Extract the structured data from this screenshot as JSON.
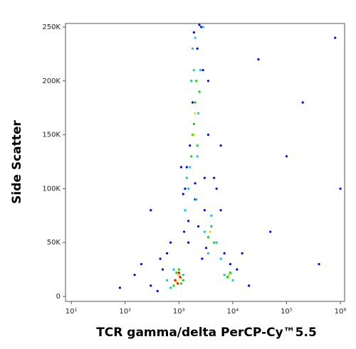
{
  "chart_data": {
    "type": "scatter",
    "x_label": "TCR gamma/delta PerCP-Cy™5.5",
    "y_label": "Side Scatter",
    "xscale": "log",
    "xlim": [
      7.8,
      1200000
    ],
    "xticks": [
      {
        "value": 10,
        "label": "10¹"
      },
      {
        "value": 100,
        "label": "10²"
      },
      {
        "value": 1000,
        "label": "10³"
      },
      {
        "value": 10000,
        "label": "10⁴"
      },
      {
        "value": 100000,
        "label": "10⁵"
      },
      {
        "value": 1000000,
        "label": "10⁶"
      }
    ],
    "ylim": [
      -4600,
      253300
    ],
    "yticks": [
      0,
      {
        "value": 50000,
        "label": "50K"
      },
      {
        "value": 100000,
        "label": "100K"
      },
      {
        "value": 150000,
        "label": "150K"
      },
      {
        "value": 200000,
        "label": "200K"
      },
      {
        "value": 250000,
        "label": "250K"
      }
    ],
    "series": [
      {
        "color": "#0000ff",
        "x": [
          300,
          400,
          500,
          600,
          700,
          1500,
          2000,
          3000,
          5000,
          15000,
          300,
          200,
          150,
          80,
          450,
          1200,
          1300,
          1400,
          1600,
          1800,
          2200,
          2600,
          3500,
          3500,
          4500,
          6000,
          7000,
          9000,
          12000,
          20000,
          50000,
          100000,
          200000,
          400000,
          800000,
          1000000,
          30000,
          1700,
          1900,
          2400,
          2800,
          1100,
          1250,
          2000,
          2300,
          3000,
          3200,
          2700,
          1500,
          6000
        ],
        "values": [
          10000,
          5000,
          25000,
          40000,
          50000,
          70000,
          90000,
          110000,
          100000,
          40000,
          80000,
          30000,
          20000,
          8000,
          35000,
          95000,
          100000,
          120000,
          140000,
          180000,
          230000,
          250000,
          200000,
          150000,
          110000,
          80000,
          40000,
          30000,
          25000,
          10000,
          60000,
          130000,
          180000,
          30000,
          240000,
          100000,
          220000,
          200000,
          245000,
          252000,
          210000,
          120000,
          60000,
          105000,
          65000,
          80000,
          45000,
          35000,
          50000,
          140000
        ]
      },
      {
        "color": "#00c8ff",
        "x": [
          700,
          800,
          1200,
          1300,
          1500,
          1600,
          1700,
          1800,
          2000,
          2100,
          2300,
          2500,
          2800,
          3000,
          3500,
          4000,
          5000,
          6000,
          7000,
          9000,
          10000,
          600,
          1400,
          1900,
          2200
        ],
        "values": [
          8000,
          25000,
          20000,
          80000,
          100000,
          120000,
          200000,
          230000,
          240000,
          90000,
          170000,
          210000,
          250000,
          60000,
          40000,
          75000,
          50000,
          35000,
          20000,
          22000,
          15000,
          15000,
          110000,
          210000,
          130000
        ]
      },
      {
        "color": "#00e000",
        "x": [
          800,
          900,
          1000,
          1100,
          1200,
          1700,
          1800,
          1900,
          2000,
          2100,
          2200,
          3500,
          4000,
          4500,
          8000,
          9000,
          2400
        ],
        "values": [
          10000,
          22000,
          25000,
          12000,
          15000,
          130000,
          150000,
          160000,
          180000,
          200000,
          140000,
          55000,
          65000,
          50000,
          18000,
          22000,
          190000
        ]
      },
      {
        "color": "#ffd000",
        "x": [
          900,
          1000,
          1100,
          1900,
          2000,
          3800,
          8500
        ],
        "values": [
          14000,
          20000,
          17000,
          150000,
          170000,
          60000,
          20000
        ]
      },
      {
        "color": "#ff0000",
        "x": [
          850,
          950,
          1050,
          1000
        ],
        "values": [
          15000,
          12000,
          18000,
          22000
        ]
      }
    ]
  }
}
